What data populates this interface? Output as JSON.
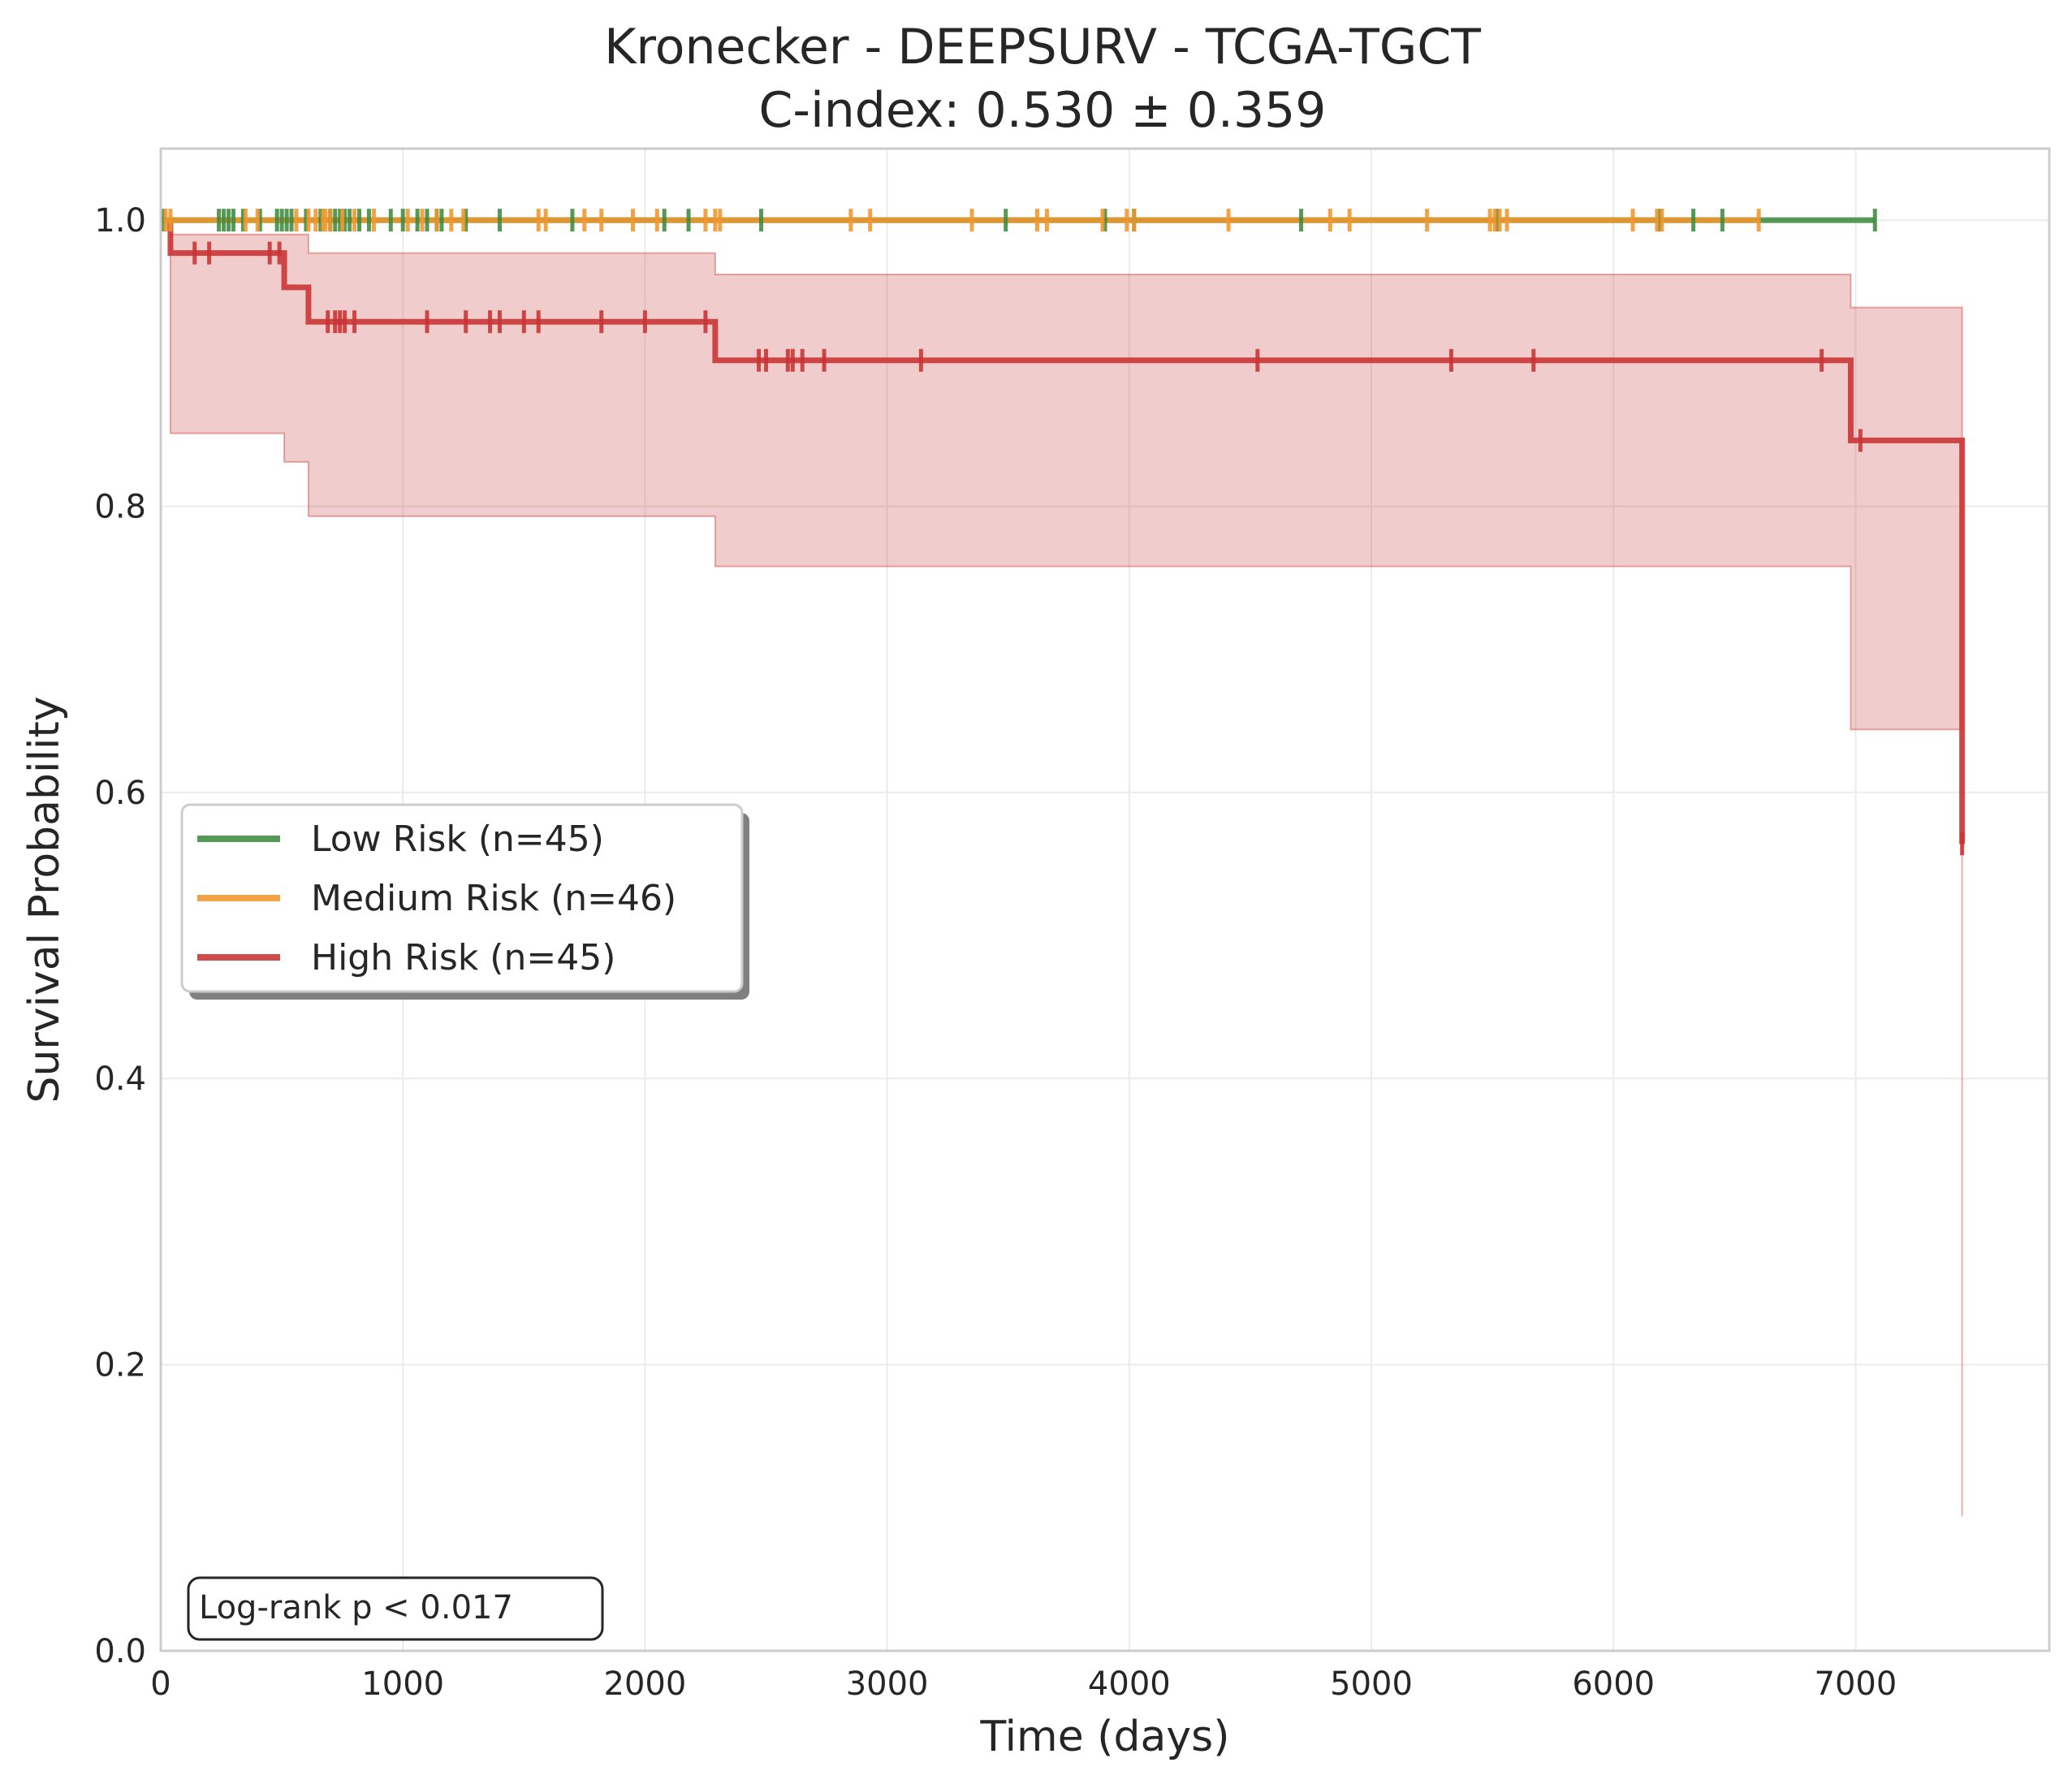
{
  "chart_data": {
    "type": "line",
    "title": "Kronecker - DEEPSURV - TCGA-TGCT",
    "subtitle": "C-index: 0.530 ± 0.359",
    "xlabel": "Time (days)",
    "ylabel": "Survival Probability",
    "xlim": [
      0,
      7800
    ],
    "ylim": [
      0,
      1.05
    ],
    "x_ticks": [
      0,
      1000,
      2000,
      3000,
      4000,
      5000,
      6000,
      7000
    ],
    "x_tick_labels": [
      "0",
      "1000",
      "2000",
      "3000",
      "4000",
      "5000",
      "6000",
      "7000"
    ],
    "y_ticks": [
      0.0,
      0.2,
      0.4,
      0.6,
      0.8,
      1.0
    ],
    "y_tick_labels": [
      "0.0",
      "0.2",
      "0.4",
      "0.6",
      "0.8",
      "1.0"
    ],
    "grid": true,
    "legend_position": "center-left",
    "annotation": "Log-rank p < 0.017",
    "series": [
      {
        "name": "Low Risk (n=45)",
        "color": "#3f8a3f",
        "step_x": [
          0,
          7080
        ],
        "step_y": [
          1.0,
          1.0
        ],
        "censor_times": [
          10,
          240,
          260,
          280,
          300,
          340,
          410,
          480,
          500,
          520,
          540,
          600,
          660,
          700,
          720,
          740,
          760,
          780,
          820,
          860,
          950,
          1000,
          1060,
          1100,
          1140,
          1160,
          1260,
          1400,
          1700,
          2080,
          2180,
          2480,
          3490,
          3900,
          4020,
          4710,
          5520,
          6190,
          6330,
          6450,
          7080
        ]
      },
      {
        "name": "Medium Risk (n=46)",
        "color": "#f0962c",
        "step_x": [
          0,
          6600
        ],
        "step_y": [
          1.0,
          1.0
        ],
        "censor_times": [
          20,
          40,
          350,
          400,
          560,
          610,
          640,
          670,
          680,
          700,
          750,
          800,
          880,
          1020,
          1080,
          1140,
          1200,
          1250,
          1560,
          1590,
          1750,
          1820,
          1950,
          2050,
          2250,
          2290,
          2310,
          2850,
          2930,
          3350,
          3620,
          3660,
          3890,
          3990,
          4020,
          4410,
          4830,
          4910,
          5230,
          5490,
          5510,
          5530,
          5560,
          6080,
          6180,
          6200,
          6600
        ]
      },
      {
        "name": "High Risk (n=45)",
        "color": "#c83232",
        "step_x": [
          0,
          40,
          510,
          610,
          2290,
          6980,
          7440
        ],
        "step_y": [
          1.0,
          0.977,
          0.953,
          0.929,
          0.902,
          0.846,
          0.564
        ],
        "ci_upper": [
          1.0,
          0.99,
          0.99,
          0.977,
          0.962,
          0.939,
          0.871
        ],
        "ci_lower": [
          1.0,
          0.851,
          0.831,
          0.793,
          0.758,
          0.644,
          0.094
        ],
        "censor_times": [
          140,
          200,
          450,
          490,
          690,
          720,
          740,
          760,
          800,
          1100,
          1260,
          1360,
          1400,
          1500,
          1560,
          1820,
          2000,
          2250,
          2470,
          2500,
          2590,
          2610,
          2650,
          2740,
          3140,
          4530,
          5330,
          5670,
          6860,
          7020,
          7440
        ]
      }
    ]
  }
}
